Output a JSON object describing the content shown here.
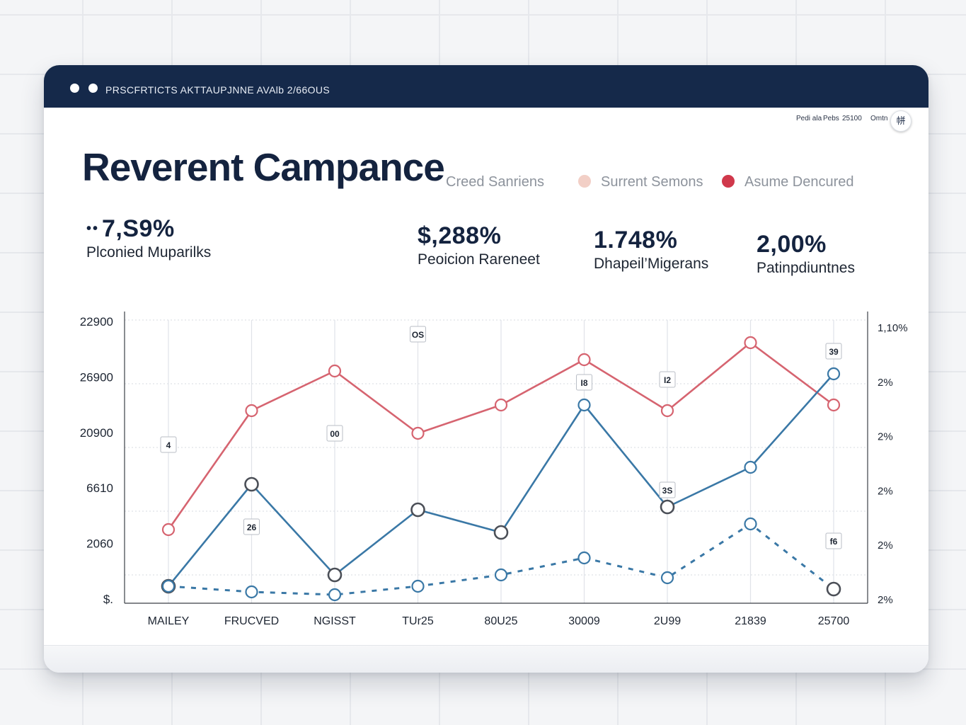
{
  "window": {
    "title": "PRSCFRTICTS AKTTAUPJNNE AVAlb 2/66OUS",
    "status_items": [
      "Pedi ala",
      "Pebs",
      "25100",
      "Omtn"
    ],
    "avatar_glyph": "帡"
  },
  "header": {
    "title": "Reverent Campance",
    "legend": [
      {
        "label": "Creed Sanriens",
        "color": ""
      },
      {
        "label": "Surrent Semons",
        "color": "#f2cfc6"
      },
      {
        "label": "Asume Dencured",
        "color": "#d0384b"
      }
    ]
  },
  "kpis": [
    {
      "value": "7,S9%",
      "label": "Plconied Muparilks",
      "bullets": "••"
    },
    {
      "value": "$,288%",
      "label": "Peoicion Rareneet"
    },
    {
      "value": "1.748%",
      "label": "Dhapeil’Migerans"
    },
    {
      "value": "2,00%",
      "label": "Patinpdiuntnes"
    }
  ],
  "colors": {
    "red": "#d66470",
    "blue": "#3a78a6",
    "dark": "#4b4f57",
    "accent": "#15294a"
  },
  "chart_data": {
    "type": "line",
    "x": [
      "MAILEY",
      "FRUCVED",
      "NGISST",
      "TUr25",
      "80U25",
      "30009",
      "2U99",
      "21839",
      "25700"
    ],
    "left_axis_ticks": [
      "22900",
      "26900",
      "20900",
      "6610",
      "2060",
      "$."
    ],
    "right_axis_ticks": [
      "1,10%",
      "2%",
      "2%",
      "2%",
      "2%",
      "2%"
    ],
    "ylim": [
      0,
      100
    ],
    "series": [
      {
        "name": "Asume Dencured",
        "color": "#d66470",
        "style": "solid",
        "values": [
          26,
          68,
          82,
          60,
          70,
          86,
          68,
          92,
          70
        ]
      },
      {
        "name": "Surrent Semons",
        "color": "#3a78a6",
        "style": "solid",
        "values": [
          6,
          42,
          10,
          33,
          25,
          70,
          34,
          48,
          81
        ]
      },
      {
        "name": "Creed Sanriens",
        "color": "#3a78a6",
        "style": "dashed",
        "values": [
          6,
          4,
          3,
          6,
          10,
          16,
          9,
          28,
          5
        ]
      }
    ],
    "dark_marker_points": [
      {
        "series": 1,
        "index": 0
      },
      {
        "series": 1,
        "index": 1
      },
      {
        "series": 1,
        "index": 2
      },
      {
        "series": 1,
        "index": 3
      },
      {
        "series": 1,
        "index": 4
      },
      {
        "series": 1,
        "index": 6
      },
      {
        "series": 2,
        "index": 8
      }
    ],
    "annotations": [
      {
        "text": "4",
        "xi": 0,
        "y": 56
      },
      {
        "text": "26",
        "xi": 1,
        "y": 27
      },
      {
        "text": "00",
        "xi": 2,
        "y": 60
      },
      {
        "text": "OS",
        "xi": 3,
        "y": 95
      },
      {
        "text": "I8",
        "xi": 5,
        "y": 78
      },
      {
        "text": "I2",
        "xi": 6,
        "y": 79
      },
      {
        "text": "3S",
        "xi": 6,
        "y": 40
      },
      {
        "text": "39",
        "xi": 8,
        "y": 89
      },
      {
        "text": "f6",
        "xi": 8,
        "y": 22
      }
    ]
  }
}
